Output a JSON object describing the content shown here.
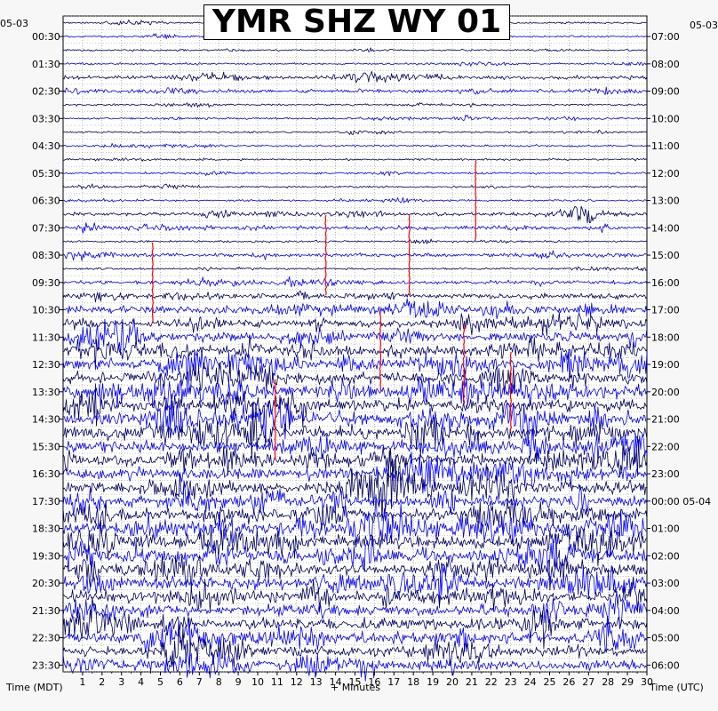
{
  "chart_data": {
    "type": "line",
    "title": "YMR SHZ WY 01",
    "xlabel": "+ Minutes",
    "left_axis_label": "Time (MDT)",
    "right_axis_label": "Time (UTC)",
    "left_date": "05-03",
    "right_date_start": "05-03",
    "right_date_next": "05-04",
    "xlim": [
      0,
      30
    ],
    "x_ticks": [
      "1",
      "2",
      "3",
      "4",
      "5",
      "6",
      "7",
      "8",
      "9",
      "10",
      "11",
      "12",
      "13",
      "14",
      "15",
      "16",
      "17",
      "18",
      "19",
      "20",
      "21",
      "22",
      "23",
      "24",
      "25",
      "26",
      "27",
      "28",
      "29",
      "30"
    ],
    "left_time_labels": [
      "00:30",
      "01:30",
      "02:30",
      "03:30",
      "04:30",
      "05:30",
      "06:30",
      "07:30",
      "08:30",
      "09:30",
      "10:30",
      "11:30",
      "12:30",
      "13:30",
      "14:30",
      "15:30",
      "16:30",
      "17:30",
      "18:30",
      "19:30",
      "20:30",
      "21:30",
      "22:30",
      "23:30"
    ],
    "right_time_labels": [
      "07:00",
      "08:00",
      "09:00",
      "10:00",
      "11:00",
      "12:00",
      "13:00",
      "14:00",
      "15:00",
      "16:00",
      "17:00",
      "18:00",
      "19:00",
      "20:00",
      "21:00",
      "22:00",
      "23:00",
      "00:00 05-04",
      "01:00",
      "02:00",
      "03:00",
      "04:00",
      "05:00",
      "06:00"
    ],
    "trace_count": 48,
    "trace_minutes": 30,
    "trace_colors": [
      "#00005f",
      "#0000ff"
    ],
    "event_color": "#ff0000",
    "amplitude_by_half_hour": [
      1,
      1,
      1,
      1,
      2,
      2,
      1,
      1,
      1,
      1,
      1,
      1,
      1,
      1,
      2,
      2,
      1,
      2,
      1,
      2,
      3,
      4,
      4,
      5,
      6,
      6,
      6,
      7,
      6,
      7,
      7,
      6,
      6,
      6,
      6,
      6,
      6,
      7,
      7,
      7,
      6,
      6,
      6,
      5,
      6,
      6,
      5,
      5
    ],
    "events": [
      {
        "trace": 13,
        "minute": 21.2
      },
      {
        "trace": 17,
        "minute": 13.5
      },
      {
        "trace": 17,
        "minute": 17.8
      },
      {
        "trace": 19,
        "minute": 4.6
      },
      {
        "trace": 24,
        "minute": 16.3
      },
      {
        "trace": 25,
        "minute": 20.6
      },
      {
        "trace": 27,
        "minute": 23.0
      },
      {
        "trace": 29,
        "minute": 10.9
      }
    ]
  }
}
